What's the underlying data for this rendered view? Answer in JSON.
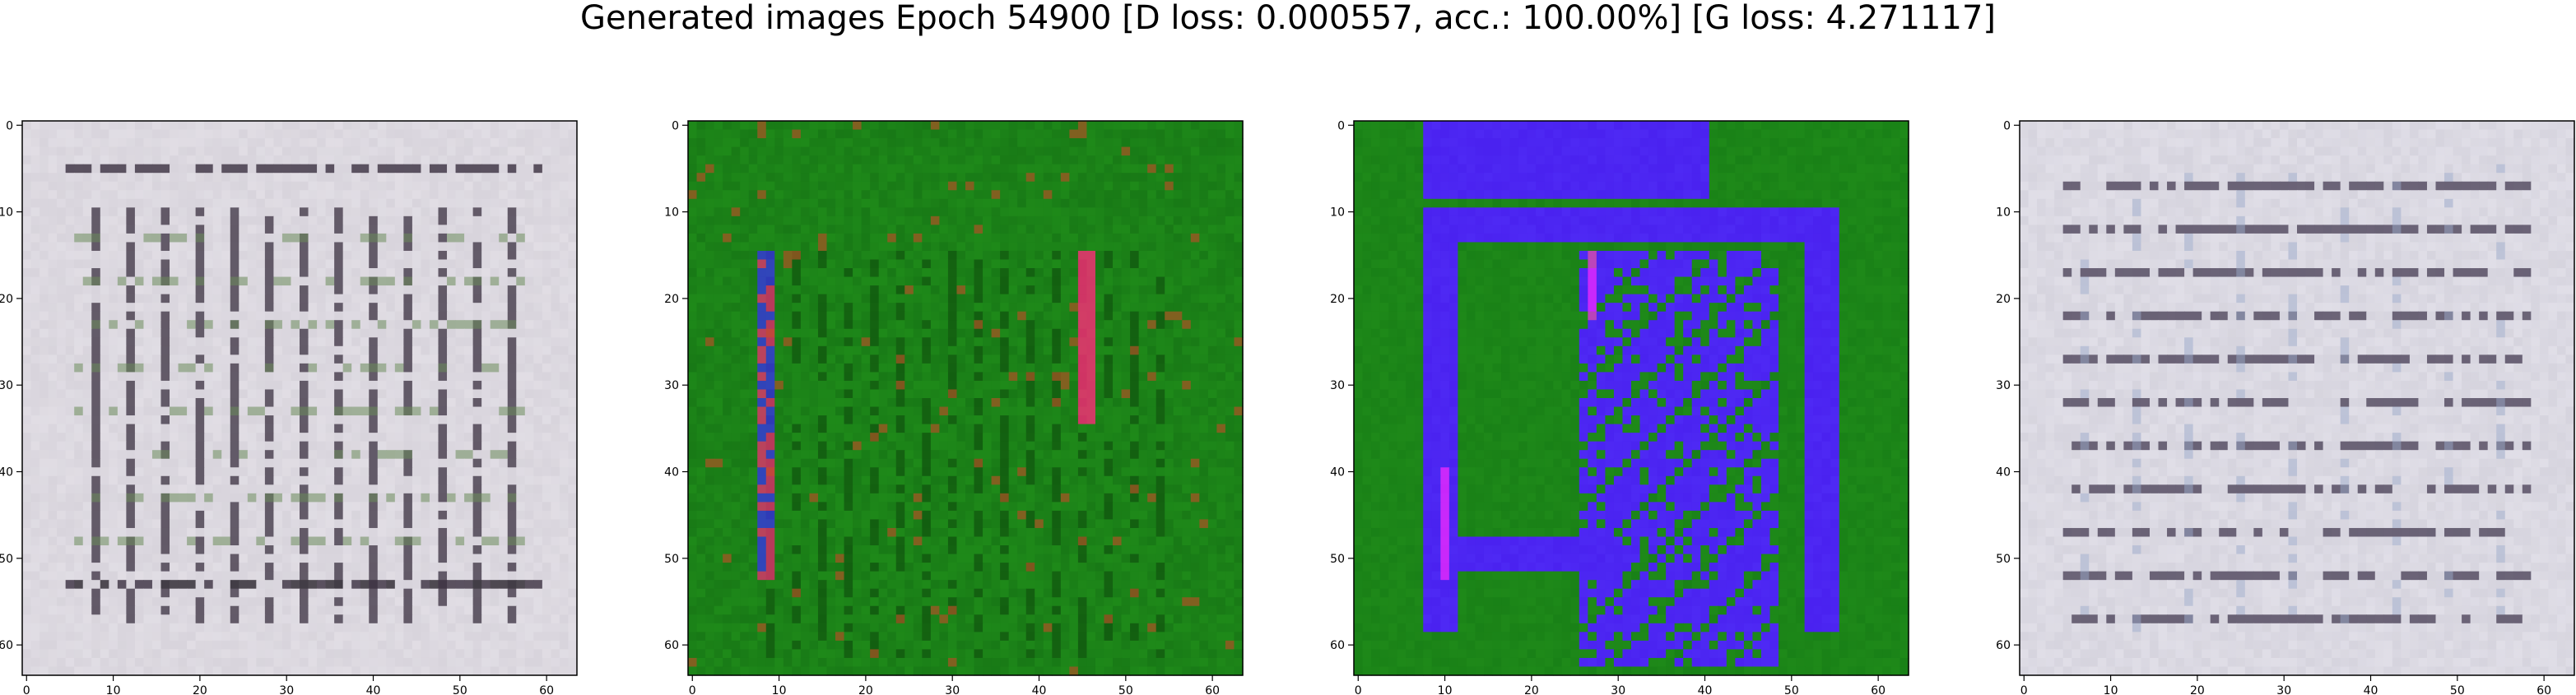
{
  "figure": {
    "title": "Generated images Epoch 54900 [D loss: 0.000557, acc.: 100.00%] [G loss: 4.271117]"
  },
  "chart_data": [
    {
      "type": "heatmap",
      "panel": 1,
      "title": "",
      "xlabel": "",
      "ylabel": "",
      "xlim": [
        -0.5,
        63.5
      ],
      "ylim": [
        63.5,
        -0.5
      ],
      "x_ticks": [
        0,
        10,
        20,
        30,
        40,
        50,
        60
      ],
      "y_ticks": [
        0,
        10,
        20,
        30,
        40,
        50,
        60
      ],
      "grid": false,
      "pattern": "vertical-bars",
      "colors": {
        "base": "#d8d4dc",
        "line": "#3a3040",
        "accent": "#6a8a5a"
      }
    },
    {
      "type": "heatmap",
      "panel": 2,
      "title": "",
      "xlabel": "",
      "ylabel": "",
      "xlim": [
        -0.5,
        63.5
      ],
      "ylim": [
        63.5,
        -0.5
      ],
      "x_ticks": [
        0,
        10,
        20,
        30,
        40,
        50,
        60
      ],
      "y_ticks": [
        0,
        10,
        20,
        30,
        40,
        50,
        60
      ],
      "grid": false,
      "pattern": "green-field",
      "colors": {
        "base": "#1f8a1a",
        "line": "#0e4a0c",
        "accent": "#ff2a7a",
        "accent2": "#3a2aff"
      }
    },
    {
      "type": "heatmap",
      "panel": 3,
      "title": "",
      "xlabel": "",
      "ylabel": "",
      "xlim": [
        -0.5,
        63.5
      ],
      "ylim": [
        63.5,
        -0.5
      ],
      "x_ticks": [
        0,
        10,
        20,
        30,
        40,
        50,
        60
      ],
      "y_ticks": [
        0,
        10,
        20,
        30,
        40,
        50,
        60
      ],
      "grid": false,
      "pattern": "blue-maze",
      "colors": {
        "base": "#1f8a1a",
        "line": "#4a22f0",
        "accent": "#ff2aff"
      }
    },
    {
      "type": "heatmap",
      "panel": 4,
      "title": "",
      "xlabel": "",
      "ylabel": "",
      "xlim": [
        -0.5,
        63.5
      ],
      "ylim": [
        63.5,
        -0.5
      ],
      "x_ticks": [
        0,
        10,
        20,
        30,
        40,
        50,
        60
      ],
      "y_ticks": [
        0,
        10,
        20,
        30,
        40,
        50,
        60
      ],
      "grid": false,
      "pattern": "horizontal-bars",
      "colors": {
        "base": "#d6d4de",
        "line": "#3a3048",
        "accent": "#9aa8c8"
      }
    }
  ]
}
